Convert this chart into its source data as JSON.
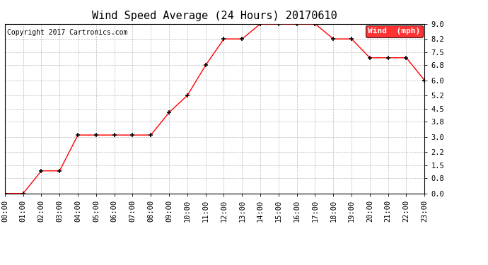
{
  "title": "Wind Speed Average (24 Hours) 20170610",
  "copyright": "Copyright 2017 Cartronics.com",
  "legend_label": "Wind  (mph)",
  "x_labels": [
    "00:00",
    "01:00",
    "02:00",
    "03:00",
    "04:00",
    "05:00",
    "06:00",
    "07:00",
    "08:00",
    "09:00",
    "10:00",
    "11:00",
    "12:00",
    "13:00",
    "14:00",
    "15:00",
    "16:00",
    "17:00",
    "18:00",
    "19:00",
    "20:00",
    "21:00",
    "22:00",
    "23:00"
  ],
  "y_values": [
    0.0,
    0.0,
    1.2,
    1.2,
    3.1,
    3.1,
    3.1,
    3.1,
    3.1,
    4.3,
    5.2,
    6.8,
    8.2,
    8.2,
    9.0,
    9.0,
    9.0,
    9.0,
    8.2,
    8.2,
    7.2,
    7.2,
    7.2,
    6.0
  ],
  "y_ticks": [
    0.0,
    0.8,
    1.5,
    2.2,
    3.0,
    3.8,
    4.5,
    5.2,
    6.0,
    6.8,
    7.5,
    8.2,
    9.0
  ],
  "ylim": [
    0.0,
    9.0
  ],
  "line_color": "red",
  "marker": "+",
  "marker_color": "black",
  "grid_color": "#bbbbbb",
  "background_color": "white",
  "legend_bg": "red",
  "legend_text_color": "white",
  "title_fontsize": 11,
  "copyright_fontsize": 7,
  "tick_fontsize": 7.5,
  "legend_fontsize": 8
}
